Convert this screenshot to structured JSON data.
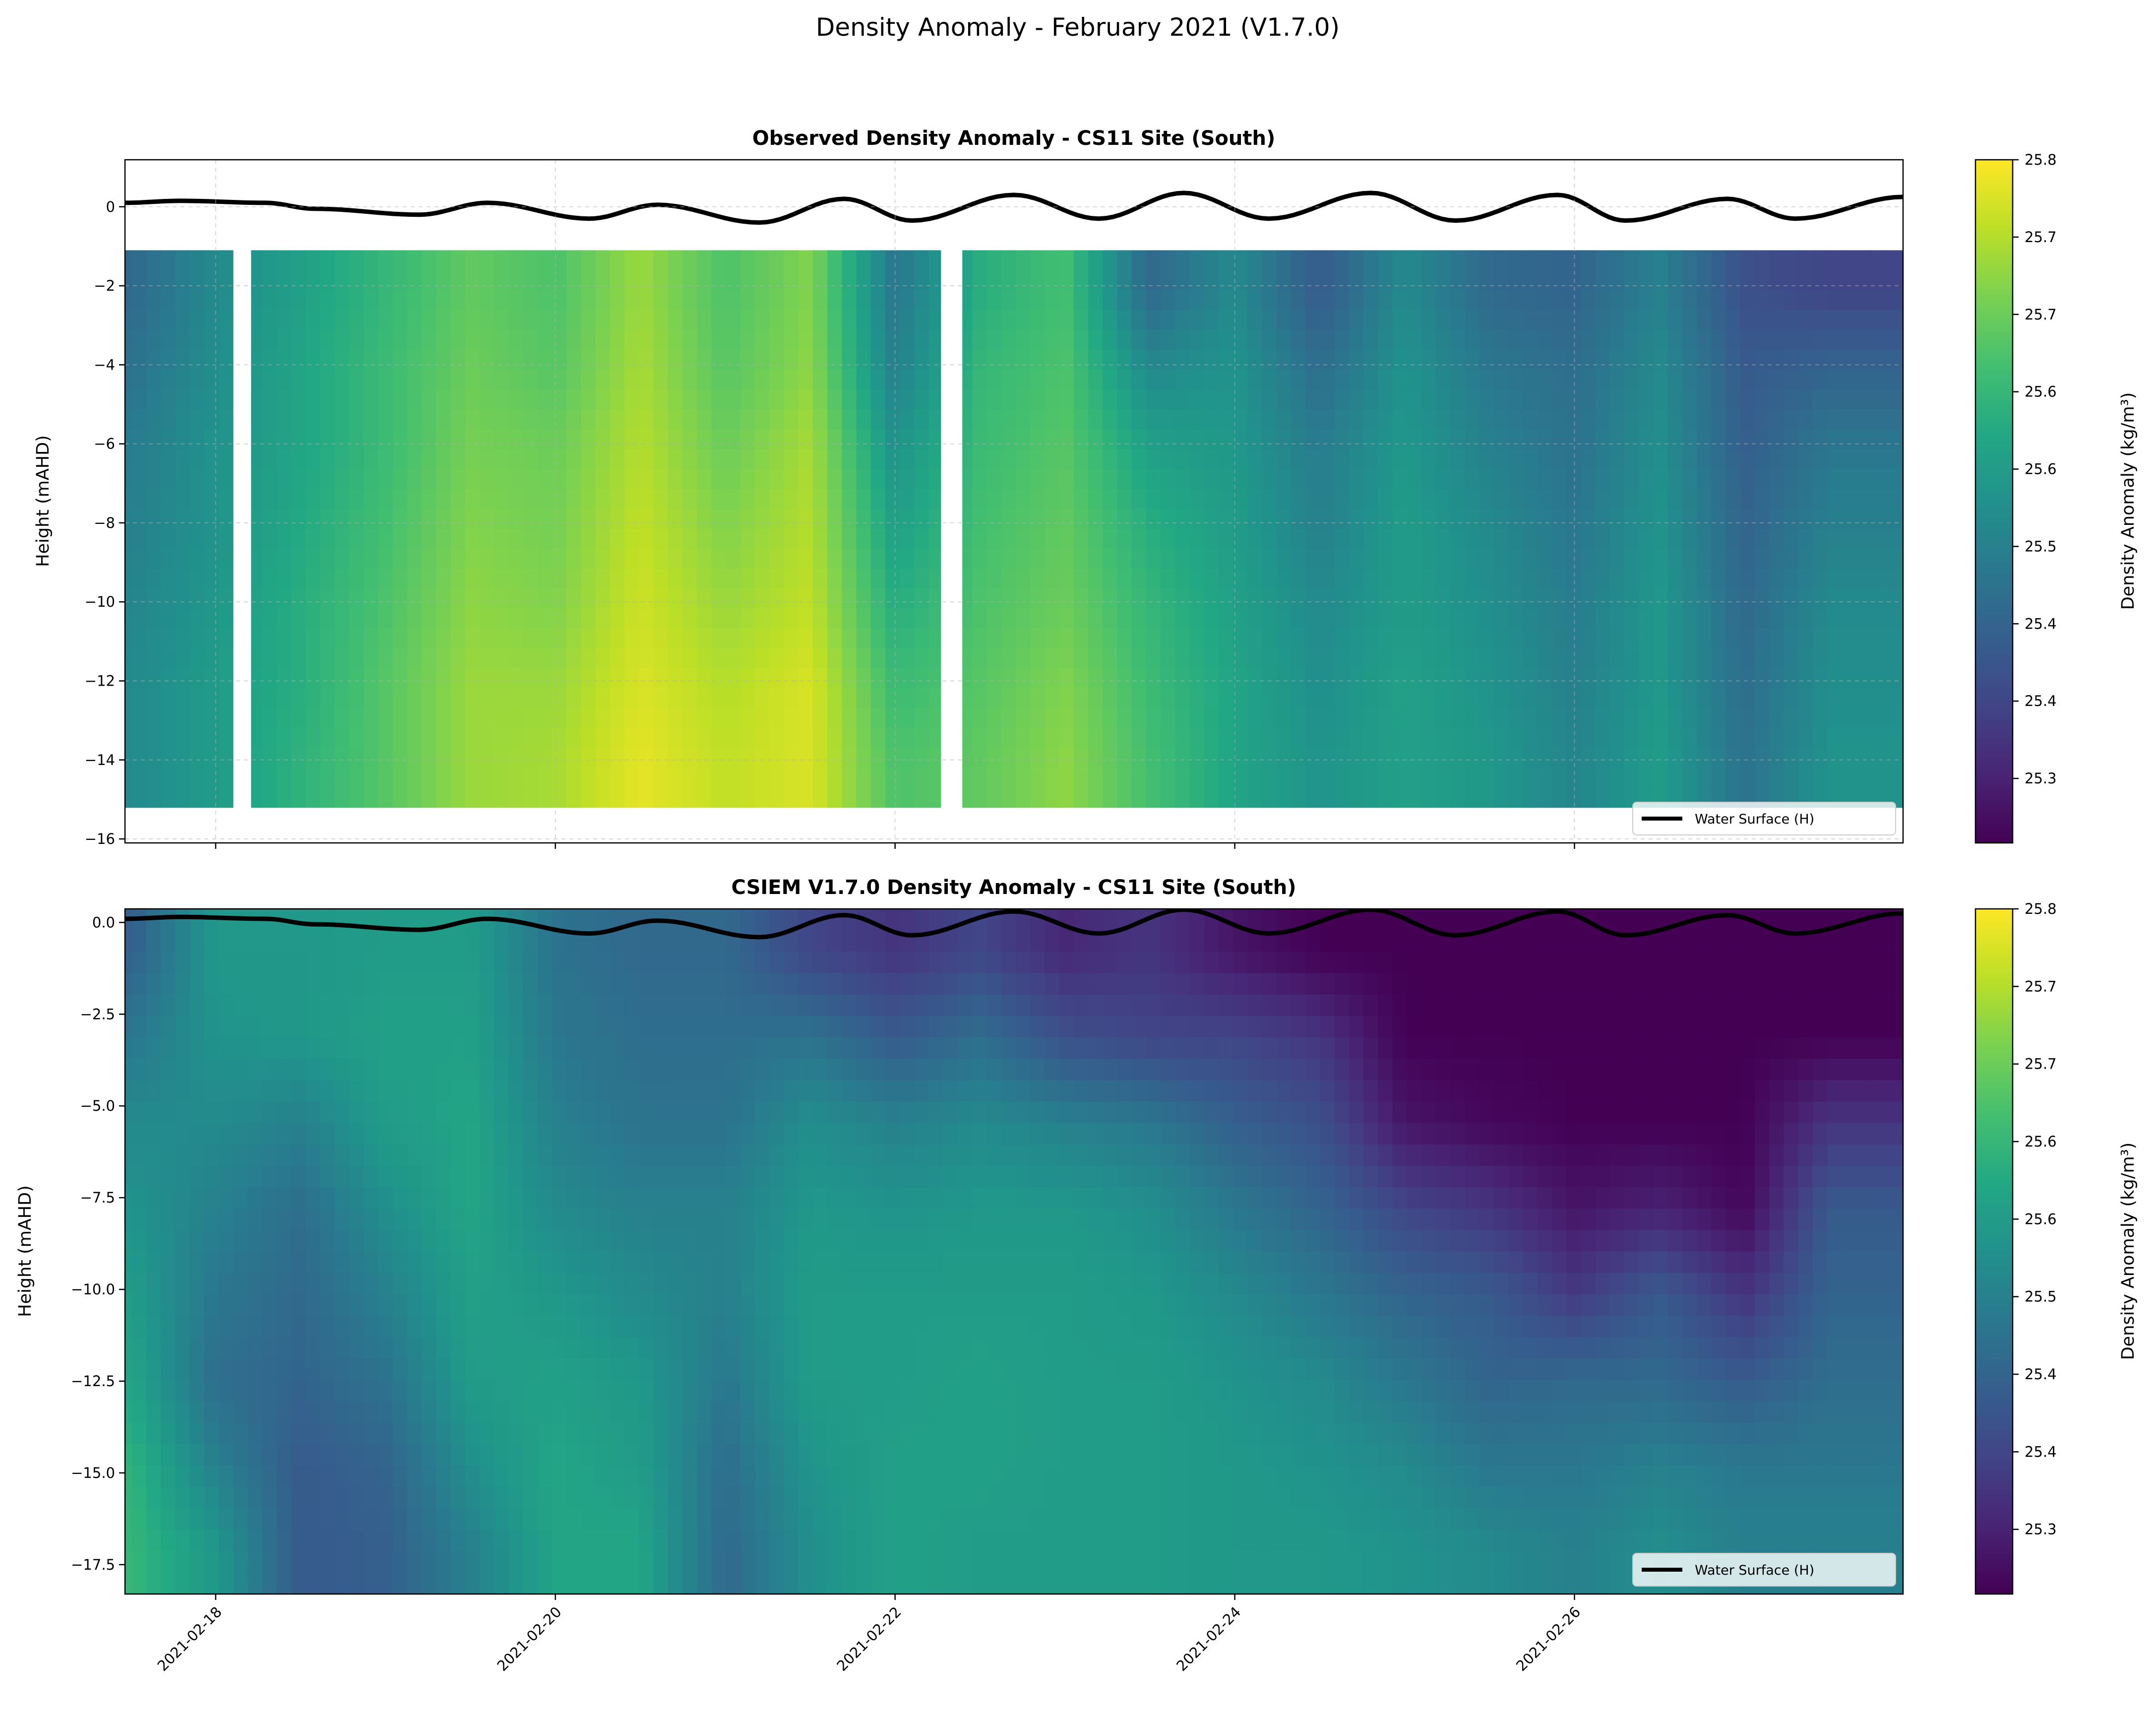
{
  "suptitle": "Density Anomaly - February 2021 (V1.7.0)",
  "legend_label": "Water Surface (H)",
  "colorbar_label": "Density Anomaly (kg/m³)",
  "colormap": "viridis",
  "chart_data": [
    {
      "type": "heatmap",
      "title": "Observed Density Anomaly - CS11 Site (South)",
      "ylabel": "Height (mAHD)",
      "xlim": [
        "2021-02-17 11:11",
        "2021-02-27 22:26"
      ],
      "ylim": [
        -16.1,
        1.19
      ],
      "yticks": [
        0,
        -2,
        -4,
        -6,
        -8,
        -10,
        -12,
        -14,
        -16
      ],
      "ytick_labels": [
        "0",
        "−2",
        "−4",
        "−6",
        "−8",
        "−10",
        "−12",
        "−14",
        "−16"
      ],
      "grid": true,
      "legend": "lower-right",
      "color_range": [
        25.27,
        25.8
      ],
      "data_top_height": -1.1,
      "data_bottom_height": -15.2,
      "gaps": [
        [
          "2021-02-18 02:30",
          "2021-02-18 05:00"
        ],
        [
          "2021-02-22 06:30",
          "2021-02-22 09:30"
        ]
      ],
      "times": [
        "2021-02-17 12:00",
        "2021-02-18 00:00",
        "2021-02-18 12:00",
        "2021-02-19 00:00",
        "2021-02-19 12:00",
        "2021-02-20 00:00",
        "2021-02-20 12:00",
        "2021-02-21 00:00",
        "2021-02-21 12:00",
        "2021-02-22 00:00",
        "2021-02-22 12:00",
        "2021-02-23 00:00",
        "2021-02-23 12:00",
        "2021-02-24 00:00",
        "2021-02-24 12:00",
        "2021-02-25 00:00",
        "2021-02-25 12:00",
        "2021-02-26 00:00",
        "2021-02-26 12:00",
        "2021-02-27 00:00",
        "2021-02-27 12:00"
      ],
      "depths": [
        -2,
        -4,
        -6,
        -8,
        -10,
        -12,
        -14
      ],
      "values": [
        [
          25.45,
          25.47,
          25.49,
          25.5,
          25.51,
          25.52,
          25.52
        ],
        [
          25.52,
          25.53,
          25.54,
          25.54,
          25.55,
          25.56,
          25.56
        ],
        [
          25.57,
          25.58,
          25.58,
          25.59,
          25.6,
          25.6,
          25.61
        ],
        [
          25.62,
          25.63,
          25.63,
          25.64,
          25.65,
          25.66,
          25.66
        ],
        [
          25.67,
          25.68,
          25.69,
          25.7,
          25.71,
          25.72,
          25.72
        ],
        [
          25.65,
          25.66,
          25.68,
          25.69,
          25.7,
          25.72,
          25.73
        ],
        [
          25.72,
          25.73,
          25.74,
          25.75,
          25.76,
          25.77,
          25.78
        ],
        [
          25.65,
          25.66,
          25.68,
          25.7,
          25.72,
          25.74,
          25.75
        ],
        [
          25.7,
          25.71,
          25.73,
          25.74,
          25.75,
          25.77,
          25.77
        ],
        [
          25.48,
          25.5,
          25.54,
          25.57,
          25.6,
          25.63,
          25.65
        ],
        [
          25.6,
          25.62,
          25.63,
          25.64,
          25.65,
          25.66,
          25.67
        ],
        [
          25.64,
          25.65,
          25.66,
          25.67,
          25.68,
          25.7,
          25.71
        ],
        [
          25.45,
          25.52,
          25.57,
          25.6,
          25.62,
          25.63,
          25.64
        ],
        [
          25.52,
          25.54,
          25.55,
          25.56,
          25.57,
          25.58,
          25.58
        ],
        [
          25.42,
          25.46,
          25.49,
          25.5,
          25.52,
          25.53,
          25.54
        ],
        [
          25.52,
          25.54,
          25.55,
          25.56,
          25.56,
          25.57,
          25.57
        ],
        [
          25.45,
          25.48,
          25.5,
          25.52,
          25.53,
          25.54,
          25.55
        ],
        [
          25.44,
          25.46,
          25.47,
          25.48,
          25.49,
          25.5,
          25.51
        ],
        [
          25.5,
          25.52,
          25.53,
          25.54,
          25.55,
          25.55,
          25.56
        ],
        [
          25.4,
          25.42,
          25.43,
          25.44,
          25.45,
          25.46,
          25.47
        ],
        [
          25.38,
          25.44,
          25.48,
          25.5,
          25.52,
          25.53,
          25.54
        ]
      ]
    },
    {
      "type": "heatmap",
      "title": "CSIEM V1.7.0 Density Anomaly - CS11 Site (South)",
      "ylabel": "Height (mAHD)",
      "xlim": [
        "2021-02-17 11:11",
        "2021-02-27 22:26"
      ],
      "ylim": [
        -18.3,
        0.37
      ],
      "yticks": [
        0,
        -2.5,
        -5,
        -7.5,
        -10,
        -12.5,
        -15,
        -17.5
      ],
      "ytick_labels": [
        "0.0",
        "−2.5",
        "−5.0",
        "−7.5",
        "−10.0",
        "−12.5",
        "−15.0",
        "−17.5"
      ],
      "grid": false,
      "legend": "lower-right",
      "color_range": [
        25.27,
        25.8
      ],
      "xticks": [
        "2021-02-18",
        "2021-02-20",
        "2021-02-22",
        "2021-02-24",
        "2021-02-26"
      ],
      "times": [
        "2021-02-17 12:00",
        "2021-02-18 00:00",
        "2021-02-18 12:00",
        "2021-02-19 00:00",
        "2021-02-19 12:00",
        "2021-02-20 00:00",
        "2021-02-20 12:00",
        "2021-02-21 00:00",
        "2021-02-21 12:00",
        "2021-02-22 00:00",
        "2021-02-22 12:00",
        "2021-02-23 00:00",
        "2021-02-23 12:00",
        "2021-02-24 00:00",
        "2021-02-24 12:00",
        "2021-02-25 00:00",
        "2021-02-25 12:00",
        "2021-02-26 00:00",
        "2021-02-26 12:00",
        "2021-02-27 00:00",
        "2021-02-27 12:00"
      ],
      "depths": [
        -1.25,
        -3.75,
        -6.25,
        -8.75,
        -11.25,
        -13.75,
        -16.25,
        -18.0
      ],
      "values": [
        [
          25.43,
          25.48,
          25.52,
          25.54,
          25.56,
          25.58,
          25.61,
          25.62
        ],
        [
          25.55,
          25.54,
          25.52,
          25.5,
          25.48,
          25.46,
          25.5,
          25.55
        ],
        [
          25.55,
          25.55,
          25.5,
          25.46,
          25.45,
          25.44,
          25.42,
          25.42
        ],
        [
          25.56,
          25.57,
          25.56,
          25.53,
          25.5,
          25.47,
          25.44,
          25.43
        ],
        [
          25.56,
          25.57,
          25.58,
          25.58,
          25.57,
          25.56,
          25.53,
          25.5
        ],
        [
          25.47,
          25.48,
          25.5,
          25.52,
          25.55,
          25.57,
          25.58,
          25.58
        ],
        [
          25.45,
          25.46,
          25.47,
          25.5,
          25.52,
          25.55,
          25.56,
          25.58
        ],
        [
          25.45,
          25.46,
          25.47,
          25.5,
          25.5,
          25.48,
          25.46,
          25.45
        ],
        [
          25.38,
          25.47,
          25.53,
          25.55,
          25.56,
          25.56,
          25.54,
          25.53
        ],
        [
          25.35,
          25.42,
          25.5,
          25.54,
          25.56,
          25.56,
          25.57,
          25.57
        ],
        [
          25.38,
          25.46,
          25.52,
          25.55,
          25.56,
          25.57,
          25.57,
          25.56
        ],
        [
          25.33,
          25.4,
          25.5,
          25.55,
          25.56,
          25.56,
          25.56,
          25.56
        ],
        [
          25.35,
          25.38,
          25.48,
          25.53,
          25.55,
          25.56,
          25.56,
          25.56
        ],
        [
          25.3,
          25.38,
          25.43,
          25.48,
          25.52,
          25.54,
          25.55,
          25.55
        ],
        [
          25.27,
          25.35,
          25.4,
          25.44,
          25.48,
          25.52,
          25.54,
          25.55
        ],
        [
          25.27,
          25.27,
          25.3,
          25.38,
          25.44,
          25.48,
          25.52,
          25.54
        ],
        [
          25.27,
          25.27,
          25.28,
          25.35,
          25.42,
          25.44,
          25.48,
          25.52
        ],
        [
          25.27,
          25.27,
          25.27,
          25.3,
          25.36,
          25.45,
          25.48,
          25.5
        ],
        [
          25.27,
          25.27,
          25.27,
          25.32,
          25.42,
          25.45,
          25.5,
          25.53
        ],
        [
          25.27,
          25.27,
          25.27,
          25.28,
          25.35,
          25.42,
          25.48,
          25.5
        ],
        [
          25.27,
          25.27,
          25.35,
          25.42,
          25.44,
          25.46,
          25.48,
          25.5
        ]
      ]
    }
  ],
  "water_surface": {
    "times": [
      "2021-02-17 11:11",
      "2021-02-17 19:00",
      "2021-02-18 07:00",
      "2021-02-18 14:00",
      "2021-02-19 04:48",
      "2021-02-19 14:24",
      "2021-02-20 04:48",
      "2021-02-20 14:24",
      "2021-02-21 04:48",
      "2021-02-21 16:48",
      "2021-02-22 02:24",
      "2021-02-22 16:48",
      "2021-02-23 04:48",
      "2021-02-23 16:48",
      "2021-02-24 04:48",
      "2021-02-24 19:12",
      "2021-02-25 07:12",
      "2021-02-25 21:36",
      "2021-02-26 07:12",
      "2021-02-26 21:36",
      "2021-02-27 07:12",
      "2021-02-27 22:26"
    ],
    "heights": [
      0.1,
      0.15,
      0.1,
      -0.05,
      -0.2,
      0.1,
      -0.3,
      0.05,
      -0.4,
      0.2,
      -0.35,
      0.3,
      -0.3,
      0.35,
      -0.3,
      0.35,
      -0.35,
      0.3,
      -0.35,
      0.2,
      -0.3,
      0.25
    ]
  },
  "colorbar": {
    "ticks": [
      25.8,
      25.74,
      25.68,
      25.62,
      25.56,
      25.5,
      25.44,
      25.38,
      25.32
    ],
    "tick_labels": [
      "25.8",
      "25.7",
      "25.7",
      "25.6",
      "25.6",
      "25.5",
      "25.4",
      "25.4",
      "25.3"
    ]
  }
}
